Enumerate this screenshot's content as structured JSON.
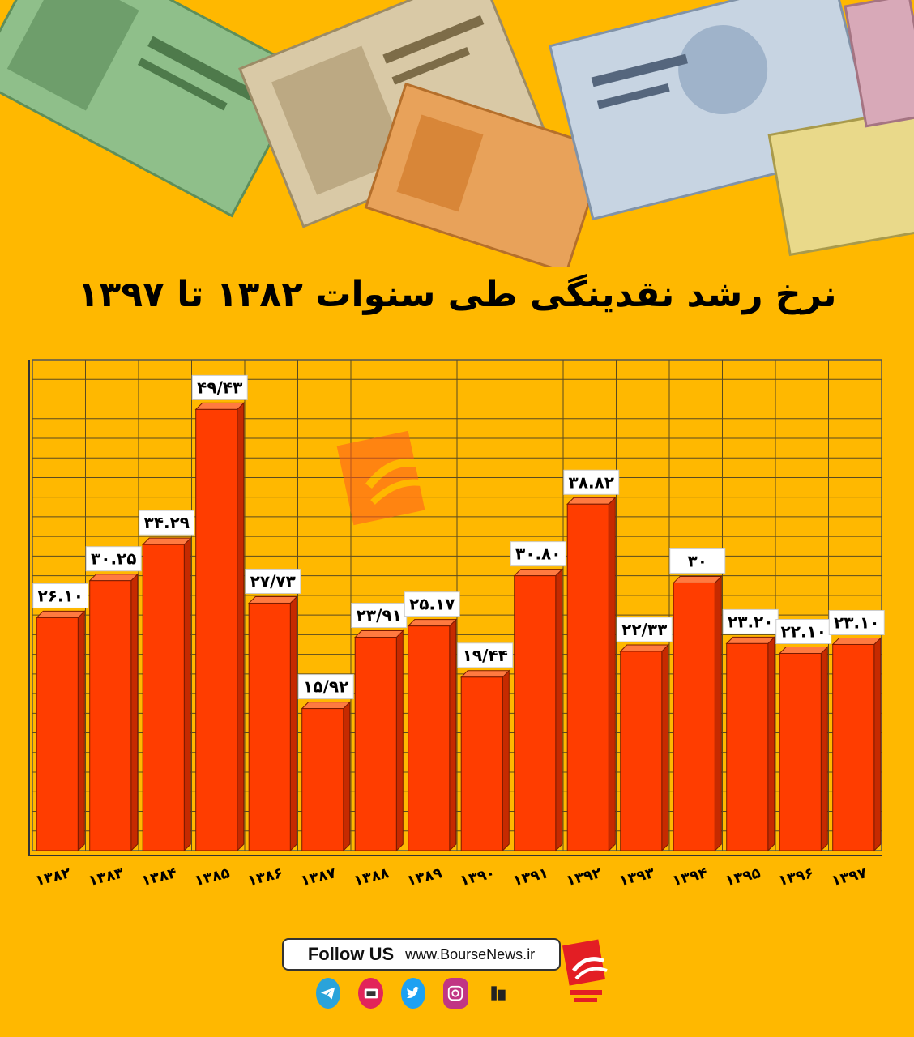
{
  "title": "نرخ رشد نقدینگی طی سنوات ۱۳۸۲ تا ۱۳۹۷",
  "chart_data": {
    "type": "bar",
    "categories": [
      "۱۳۸۲",
      "۱۳۸۳",
      "۱۳۸۴",
      "۱۳۸۵",
      "۱۳۸۶",
      "۱۳۸۷",
      "۱۳۸۸",
      "۱۳۸۹",
      "۱۳۹۰",
      "۱۳۹۱",
      "۱۳۹۲",
      "۱۳۹۳",
      "۱۳۹۴",
      "۱۳۹۵",
      "۱۳۹۶",
      "۱۳۹۷"
    ],
    "values": [
      26.1,
      30.25,
      34.29,
      49.43,
      27.73,
      15.92,
      23.91,
      25.17,
      19.44,
      30.8,
      38.82,
      22.33,
      30,
      23.2,
      22.1,
      23.1
    ],
    "data_labels": [
      "۲۶.۱۰",
      "۳۰.۲۵",
      "۳۴.۲۹",
      "۴۹/۴۳",
      "۲۷/۷۳",
      "۱۵/۹۲",
      "۲۳/۹۱",
      "۲۵.۱۷",
      "۱۹/۴۴",
      "۳۰.۸۰",
      "۳۸.۸۲",
      "۲۲/۳۳",
      "۳۰",
      "۲۳.۲۰",
      "۲۲.۱۰",
      "۲۳.۱۰"
    ],
    "bar_color": "#FF3D00",
    "bar_side_color": "#C62A00",
    "grid": true
  },
  "footer": {
    "follow_label": "Follow US",
    "website": "www.BourseNews.ir",
    "social": [
      "telegram-icon",
      "aparat-icon",
      "twitter-icon",
      "instagram-icon",
      "radio-icon"
    ]
  }
}
